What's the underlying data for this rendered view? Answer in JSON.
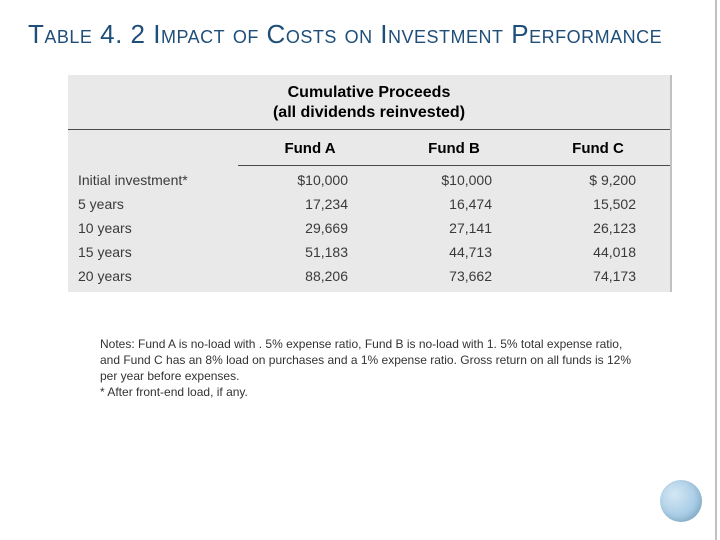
{
  "title": "Table 4. 2 Impact of Costs on Investment Performance",
  "table": {
    "header_line1": "Cumulative Proceeds",
    "header_line2": "(all dividends reinvested)",
    "columns": [
      "",
      "Fund A",
      "Fund B",
      "Fund C"
    ],
    "rows": [
      {
        "label": "Initial investment*",
        "a": "$10,000",
        "b": "$10,000",
        "c": "$ 9,200"
      },
      {
        "label": "5 years",
        "a": "17,234",
        "b": "16,474",
        "c": "15,502"
      },
      {
        "label": "10 years",
        "a": "29,669",
        "b": "27,141",
        "c": "26,123"
      },
      {
        "label": "15 years",
        "a": "51,183",
        "b": "44,713",
        "c": "44,018"
      },
      {
        "label": "20 years",
        "a": "88,206",
        "b": "73,662",
        "c": "74,173"
      }
    ],
    "background_color": "#e8e9e8",
    "text_color": "#3a3a3a",
    "rule_color": "#4a4a4a"
  },
  "notes": {
    "body": "Notes: Fund A is no-load with . 5% expense ratio, Fund B is no-load with 1. 5% total expense ratio, and Fund C has an 8% load on purchases and a 1% expense ratio. Gross return on all funds is 12% per year before expenses.",
    "footnote": "* After front-end load, if any."
  },
  "decor": {
    "circle_color": "#a9cde6"
  }
}
